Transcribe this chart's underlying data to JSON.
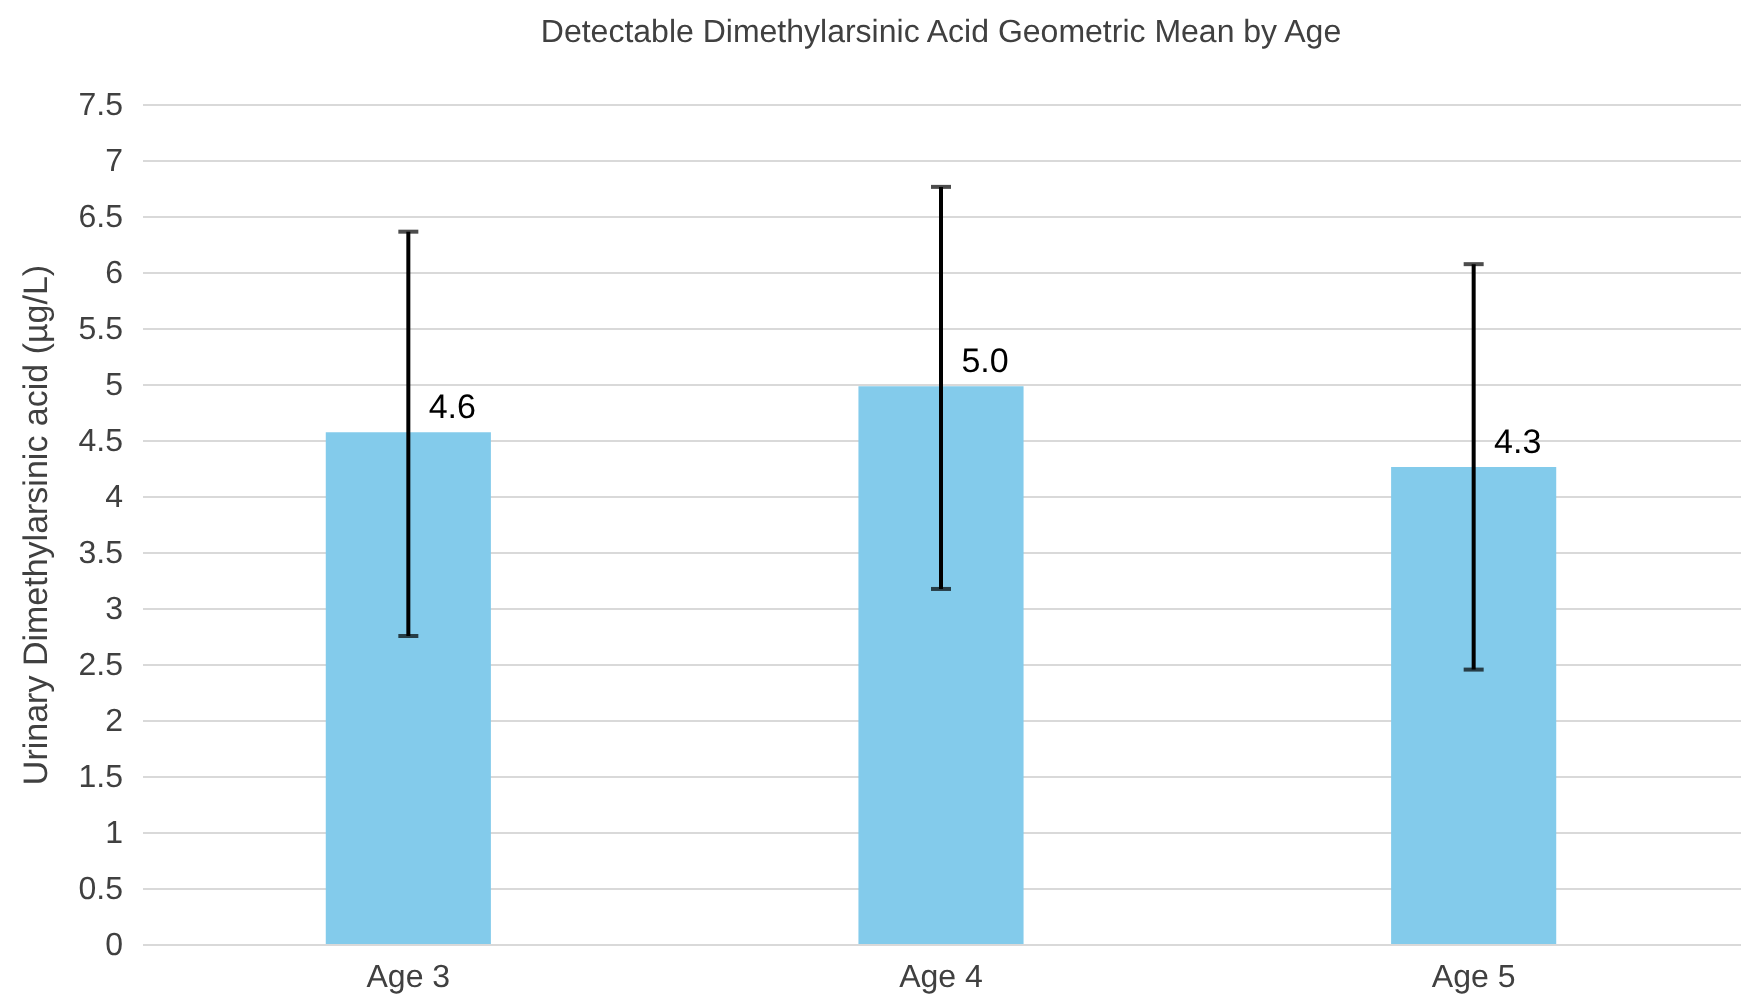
{
  "chart_data": {
    "type": "bar",
    "title": "Detectable Dimethylarsinic Acid Geometric Mean by Age",
    "ylabel": "Urinary Dimethylarsinic acid (µg/L)",
    "categories": [
      "Age 3",
      "Age 4",
      "Age 5"
    ],
    "values": [
      4.57,
      4.98,
      4.26
    ],
    "value_labels": [
      "4.6",
      "5.0",
      "4.3"
    ],
    "errors": [
      [
        2.75,
        6.36
      ],
      [
        3.17,
        6.76
      ],
      [
        2.45,
        6.07
      ]
    ],
    "color": "#83cbeb",
    "ylim": [
      0,
      7.5
    ],
    "yticks": [
      0,
      0.5,
      1,
      1.5,
      2,
      2.5,
      3,
      3.5,
      4,
      4.5,
      5,
      5.5,
      6,
      6.5,
      7,
      7.5
    ],
    "grid": "y"
  }
}
